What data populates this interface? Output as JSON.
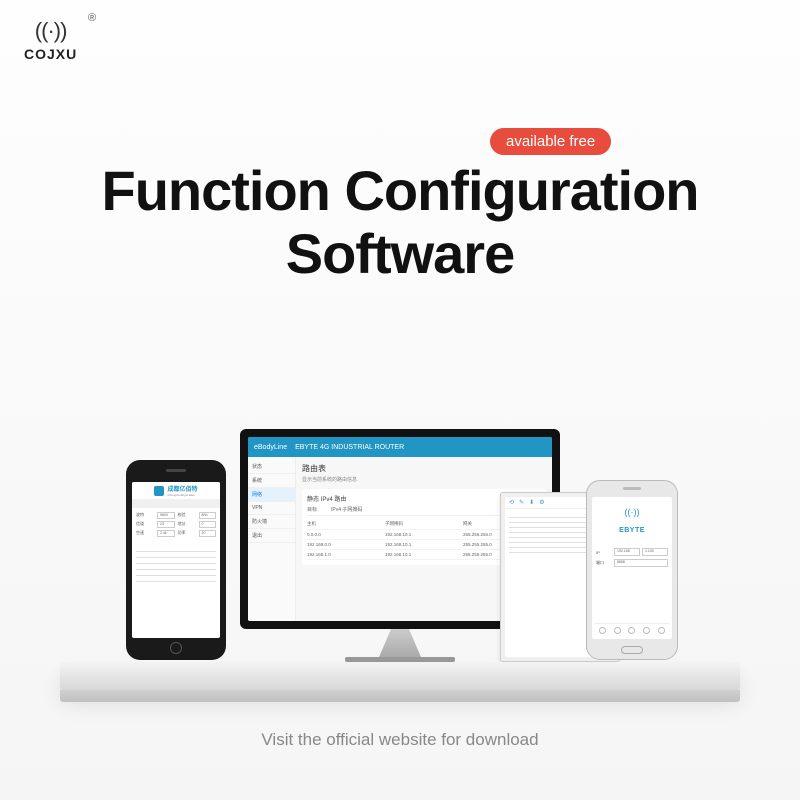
{
  "brand": {
    "name": "COJXU",
    "trademark": "®"
  },
  "badge": "available free",
  "headline_line1": "Function Configuration",
  "headline_line2": "Software",
  "footer": "Visit the official website for download",
  "monitor": {
    "header_brand": "eBodyLine",
    "header_title": "EBYTE 4G INDUSTRIAL ROUTER",
    "sidebar": [
      "状态",
      "系统",
      "网络",
      "VPN",
      "防火墙",
      "退出"
    ],
    "content_title": "路由表",
    "content_sub": "显示当前系统的路由信息",
    "panel_title": "静态 IPv4 路由",
    "tabs": [
      "目标",
      "IPv4 子网掩码"
    ],
    "table_header": [
      "主机",
      "子网掩码",
      "网关"
    ],
    "rows": [
      [
        "0.0.0.0",
        "192.168.10.1",
        "255.255.255.0"
      ],
      [
        "192.168.0.0",
        "192.168.10.1",
        "255.255.255.0"
      ],
      [
        "192.168.1.0",
        "192.168.10.1",
        "255.255.255.0"
      ]
    ]
  },
  "phone_left": {
    "title": "成都亿佰特",
    "subtitle": "Chengdu Ebyte Elec",
    "form": [
      {
        "label": "波特",
        "val": "9600",
        "label2": "校验",
        "val2": "8N1"
      },
      {
        "label": "信道",
        "val": "23",
        "label2": "地址",
        "val2": "0"
      },
      {
        "label": "空速",
        "val": "2.4k",
        "label2": "功率",
        "val2": "20"
      }
    ]
  },
  "tablet": {
    "toolbar_icons": [
      "⟲",
      "✎",
      "⬇",
      "⚙"
    ]
  },
  "phone_right": {
    "brand": "EBYTE",
    "fields": [
      {
        "label": "IP",
        "val": "192.168",
        "val2": "1.100"
      },
      {
        "label": "端口",
        "val": "8888"
      }
    ]
  },
  "colors": {
    "badge_bg": "#e74c3c",
    "accent": "#2196c4",
    "headline": "#111111",
    "footer": "#888888",
    "orange": "#f39c12",
    "blue": "#3498db"
  }
}
